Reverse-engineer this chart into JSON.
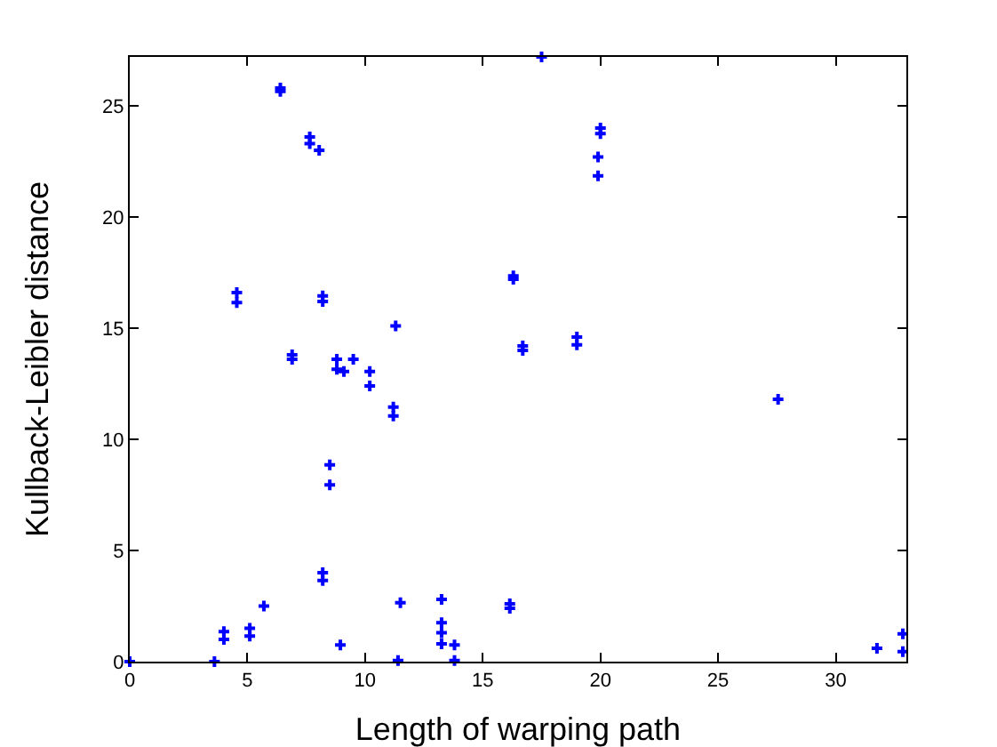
{
  "chart_data": {
    "type": "scatter",
    "xlabel": "Length of warping path",
    "ylabel": "Kullback-Leibler distance",
    "xlim": [
      0,
      33
    ],
    "ylim": [
      0,
      27.2
    ],
    "xticks": [
      0,
      5,
      10,
      15,
      20,
      25,
      30
    ],
    "yticks": [
      0,
      5,
      10,
      15,
      20,
      25
    ],
    "grid": false,
    "marker": "cross",
    "series": [
      {
        "color": "#0000ff",
        "x": [
          0,
          3.6,
          4.0,
          4.0,
          5.1,
          5.1,
          5.7,
          6.9,
          6.9,
          8.2,
          8.2,
          8.5,
          8.5,
          8.8,
          8.8,
          9.1,
          9.5,
          10.2,
          10.2,
          11.2,
          11.2,
          8.95,
          11.4,
          11.5,
          13.25,
          13.25,
          13.25,
          13.25,
          13.8,
          13.8,
          16.15,
          16.15,
          16.7,
          16.7,
          4.55,
          4.55,
          6.4,
          6.4,
          7.65,
          7.65,
          8.05,
          8.2,
          8.2,
          11.3,
          16.3,
          16.3,
          17.5,
          20.0,
          20.0,
          19.9,
          19.9,
          19.0,
          19.0,
          27.55,
          31.75,
          32.85,
          32.85
        ],
        "values": [
          0,
          0,
          1.35,
          1.0,
          1.5,
          1.15,
          2.5,
          13.8,
          13.6,
          4.0,
          3.65,
          8.85,
          7.95,
          13.6,
          13.15,
          13.05,
          13.6,
          13.05,
          12.4,
          11.45,
          11.05,
          0.75,
          0.05,
          2.65,
          2.8,
          1.75,
          1.3,
          0.8,
          0.75,
          0.05,
          2.6,
          2.4,
          14.2,
          14.0,
          16.6,
          16.15,
          25.8,
          25.65,
          23.6,
          23.3,
          23.0,
          16.45,
          16.2,
          15.1,
          17.35,
          17.2,
          27.2,
          24.0,
          23.75,
          22.7,
          21.85,
          14.6,
          14.25,
          11.8,
          0.6,
          1.25,
          0.45
        ]
      }
    ]
  }
}
